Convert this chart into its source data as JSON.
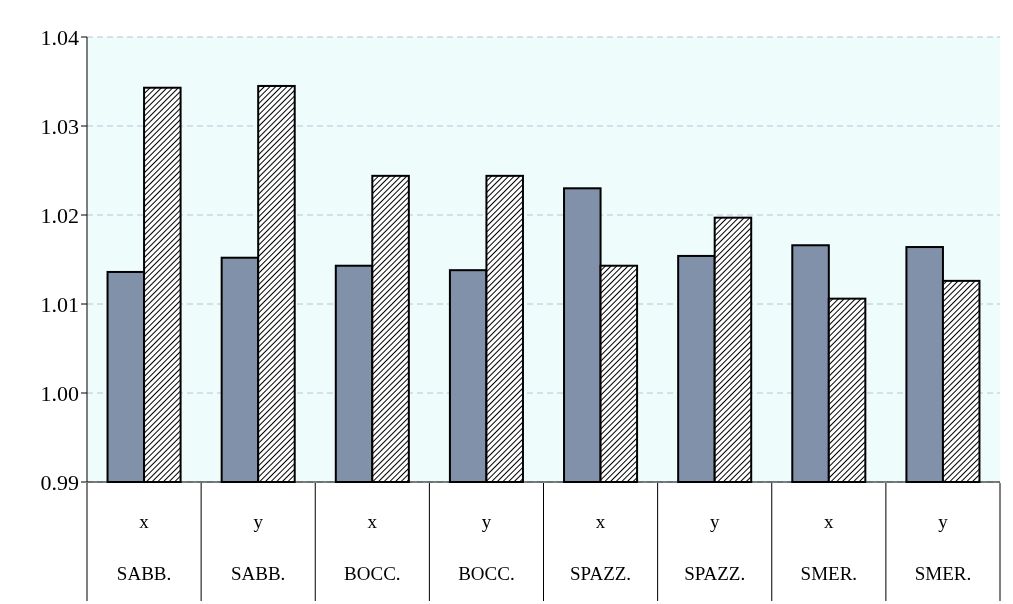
{
  "chart_data": {
    "type": "bar",
    "categories": [
      "x\nSABB.",
      "y\nSABB.",
      "x\nBOCC.",
      "y\nBOCC.",
      "x\nSPAZZ.",
      "y\nSPAZZ.",
      "x\nSMER.",
      "y\nSMER."
    ],
    "series": [
      {
        "color": "#8291aa",
        "values": [
          1.0136,
          1.0152,
          1.0143,
          1.0138,
          1.023,
          1.0154,
          1.0166,
          1.0164
        ]
      },
      {
        "color": "#000000",
        "values": [
          1.0343,
          1.0345,
          1.0244,
          1.0244,
          1.0143,
          1.0197,
          1.0106,
          1.0126
        ]
      }
    ],
    "ylim": [
      0.99,
      1.04
    ],
    "yticks": [
      0.99,
      {
        "value": 1,
        "label": "1.00"
      },
      1.01,
      1.02,
      1.03,
      1.04
    ],
    "grid": "y"
  }
}
